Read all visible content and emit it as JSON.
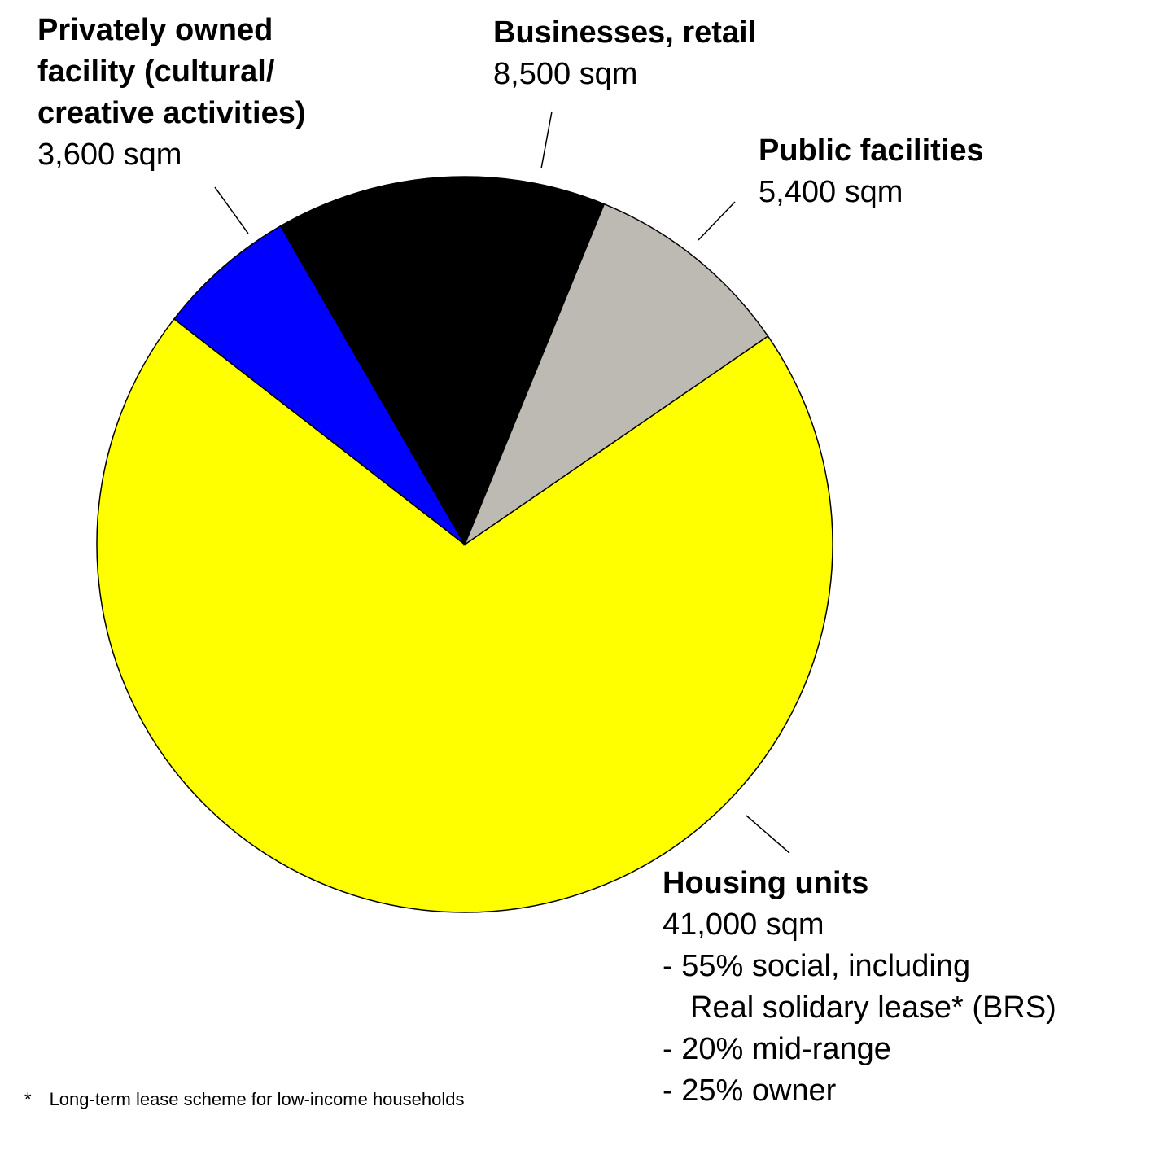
{
  "chart_data": {
    "type": "pie",
    "series": [
      {
        "name": "Housing units",
        "color": "#ffff00",
        "values": [
          41000
        ],
        "value_labels": [
          "41,000 sqm"
        ],
        "details": [
          "- 55% social, including",
          "Real solidary lease* (BRS)",
          "- 20% mid-range",
          "- 25% owner"
        ]
      },
      {
        "name": "Privately owned facility (cultural/ creative activities)",
        "color": "#0000ff",
        "values": [
          3600
        ],
        "value_labels": [
          "3,600 sqm"
        ]
      },
      {
        "name": "Businesses, retail",
        "color": "#000000",
        "values": [
          8500
        ],
        "value_labels": [
          "8,500 sqm"
        ]
      },
      {
        "name": "Public facilities",
        "color": "#bcbab2",
        "values": [
          5400
        ],
        "value_labels": [
          "5,400 sqm"
        ]
      }
    ],
    "footnote": {
      "marker": "*",
      "text": "Long-term lease scheme for low-income households"
    }
  }
}
